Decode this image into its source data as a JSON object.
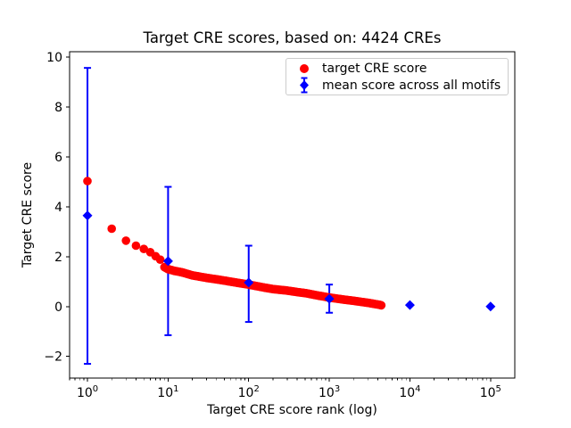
{
  "figure": {
    "title": "Target CRE scores, based on: 4424 CREs",
    "xlabel": "Target CRE score rank (log)",
    "ylabel": "Target CRE score",
    "background": "#ffffff"
  },
  "legend": {
    "entries": [
      {
        "label": "target CRE score",
        "marker": "red-circle",
        "color": "#ff0000"
      },
      {
        "label": "mean score across all motifs",
        "marker": "blue-diamond-errorbar",
        "color": "#0000ff"
      }
    ]
  },
  "chart_data": {
    "type": "scatter",
    "title": "Target CRE scores, based on: 4424 CREs",
    "xlabel": "Target CRE score rank (log)",
    "ylabel": "Target CRE score",
    "x_scale": "log",
    "xlim": [
      0.6,
      200000
    ],
    "ylim": [
      -2.87,
      10.22
    ],
    "x_ticks": [
      1,
      10,
      100,
      1000,
      10000,
      100000
    ],
    "y_ticks": [
      -2,
      0,
      2,
      4,
      6,
      8,
      10
    ],
    "grid": false,
    "legend_position": "upper right",
    "n_cres": 4424,
    "series": [
      {
        "name": "target CRE score",
        "type": "scatter",
        "marker": "circle",
        "color": "#ff0000",
        "note": "4424 points forming a dense monotonically decreasing band; sampled values (rank, score):",
        "points": [
          [
            1,
            5.03
          ],
          [
            2,
            3.12
          ],
          [
            3,
            2.64
          ],
          [
            4,
            2.44
          ],
          [
            5,
            2.31
          ],
          [
            6,
            2.18
          ],
          [
            7,
            2.02
          ],
          [
            8,
            1.88
          ],
          [
            9,
            1.58
          ],
          [
            10,
            1.5
          ],
          [
            12,
            1.43
          ],
          [
            15,
            1.37
          ],
          [
            20,
            1.25
          ],
          [
            30,
            1.15
          ],
          [
            40,
            1.09
          ],
          [
            50,
            1.04
          ],
          [
            70,
            0.96
          ],
          [
            100,
            0.88
          ],
          [
            150,
            0.77
          ],
          [
            200,
            0.7
          ],
          [
            300,
            0.64
          ],
          [
            400,
            0.58
          ],
          [
            500,
            0.54
          ],
          [
            700,
            0.45
          ],
          [
            1000,
            0.36
          ],
          [
            1500,
            0.28
          ],
          [
            2000,
            0.23
          ],
          [
            3000,
            0.15
          ],
          [
            4000,
            0.08
          ],
          [
            4424,
            0.05
          ]
        ]
      },
      {
        "name": "mean score across all motifs",
        "type": "errorbar",
        "marker": "diamond",
        "color": "#0000ff",
        "points": [
          {
            "x": 1,
            "mean": 3.65,
            "lo": -2.3,
            "hi": 9.57
          },
          {
            "x": 10,
            "mean": 1.82,
            "lo": -1.15,
            "hi": 4.8
          },
          {
            "x": 100,
            "mean": 0.96,
            "lo": -0.62,
            "hi": 2.44
          },
          {
            "x": 1000,
            "mean": 0.31,
            "lo": -0.25,
            "hi": 0.88
          },
          {
            "x": 10000,
            "mean": 0.06,
            "lo": 0.06,
            "hi": 0.06
          },
          {
            "x": 100000,
            "mean": 0.0,
            "lo": 0.0,
            "hi": 0.0
          }
        ]
      }
    ]
  }
}
